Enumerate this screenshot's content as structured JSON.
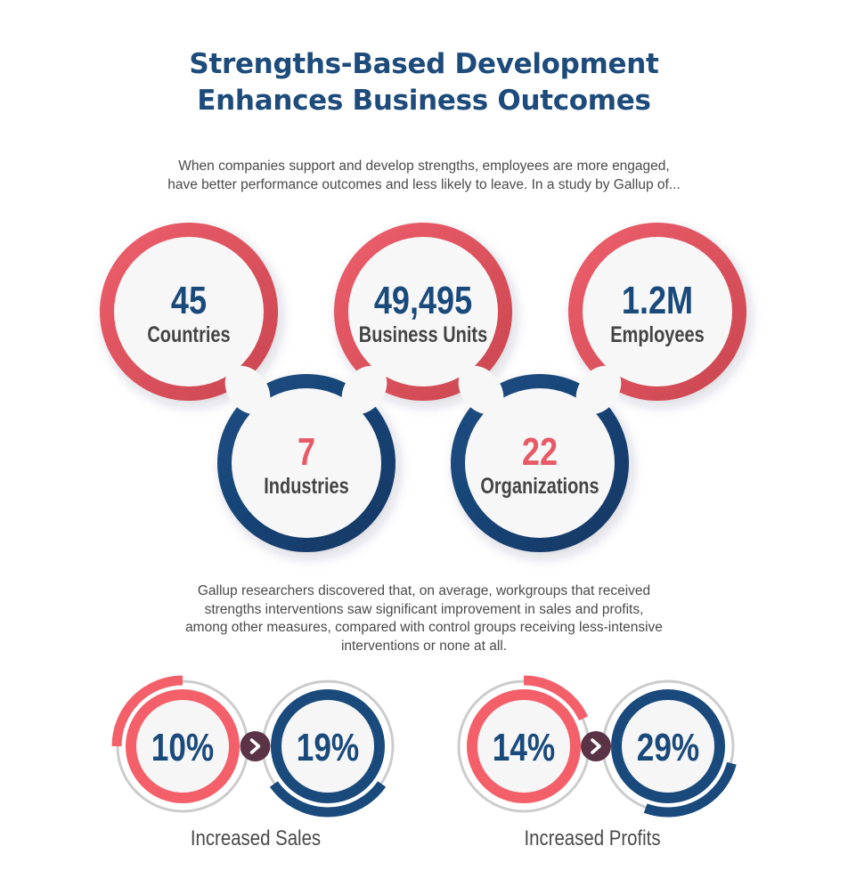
{
  "header": {
    "title_line1": "Strengths-Based Development",
    "title_line2": "Enhances Business Outcomes"
  },
  "intro": {
    "line1": "When companies support and develop strengths, employees are more engaged,",
    "line2": "have better performance outcomes and less likely to leave. In a study by Gallup of..."
  },
  "stats": [
    {
      "value": "45",
      "label": "Countries",
      "ring": "red"
    },
    {
      "value": "49,495",
      "label": "Business Units",
      "ring": "red"
    },
    {
      "value": "1.2M",
      "label": "Employees",
      "ring": "red"
    },
    {
      "value": "7",
      "label": "Industries",
      "ring": "navy"
    },
    {
      "value": "22",
      "label": "Organizations",
      "ring": "navy"
    }
  ],
  "findings": {
    "line1": "Gallup researchers discovered that, on average, workgroups that received",
    "line2": "strengths interventions saw significant improvement in sales and profits,",
    "line3": "among other measures, compared with control groups receiving less-intensive",
    "line4": "interventions or none at all."
  },
  "outcomes": [
    {
      "label": "Increased Sales",
      "before": "10%",
      "after": "19%",
      "before_value": 10,
      "after_value": 19,
      "arrow_icon": "chevron-right-icon"
    },
    {
      "label": "Increased Profits",
      "before": "14%",
      "after": "29%",
      "before_value": 14,
      "after_value": 29,
      "arrow_icon": "chevron-right-icon"
    }
  ],
  "colors": {
    "navy": "#1a4a7c",
    "red": "#e85a66",
    "gauge_red": "#f4606a",
    "arrow_bg": "#5a3347",
    "gray_ring": "#cccccc",
    "text": "#4a4a4a"
  }
}
